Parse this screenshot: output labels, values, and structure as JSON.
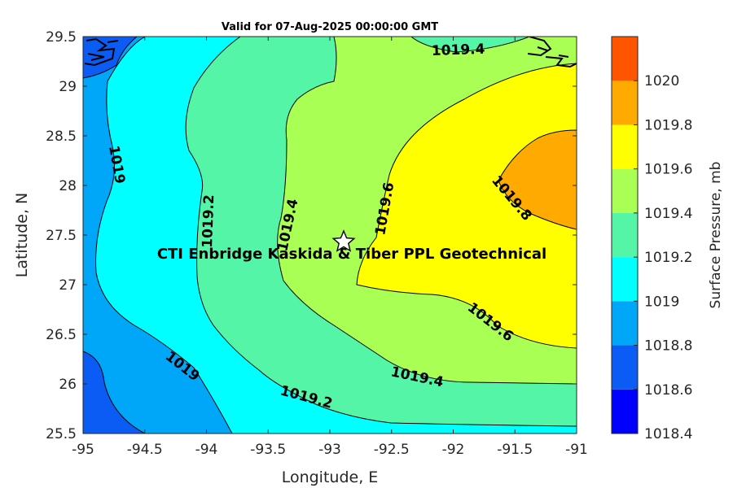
{
  "title": "Valid for 07-Aug-2025 00:00:00 GMT",
  "xlabel": "Longitude, E",
  "ylabel": "Latitude, N",
  "site_label": "CTI Enbridge  Kaskida & Tiber PPL Geotechnical",
  "colorbar": {
    "label": "Surface Pressure, mb",
    "ticks": [
      "1018.4",
      "1018.6",
      "1018.8",
      "1019",
      "1019.2",
      "1019.4",
      "1019.6",
      "1019.8",
      "1020"
    ],
    "levels": [
      {
        "from": 1018.4,
        "to": 1018.6,
        "color": "#0000ff"
      },
      {
        "from": 1018.6,
        "to": 1018.8,
        "color": "#0b5cf4"
      },
      {
        "from": 1018.8,
        "to": 1019.0,
        "color": "#00a6f7"
      },
      {
        "from": 1019.0,
        "to": 1019.2,
        "color": "#00ffff"
      },
      {
        "from": 1019.2,
        "to": 1019.4,
        "color": "#55f5a7"
      },
      {
        "from": 1019.4,
        "to": 1019.6,
        "color": "#aaff55"
      },
      {
        "from": 1019.6,
        "to": 1019.8,
        "color": "#ffff00"
      },
      {
        "from": 1019.8,
        "to": 1020.0,
        "color": "#ffaa00"
      },
      {
        "from": 1020.0,
        "to": 1020.2,
        "color": "#ff5500"
      }
    ]
  },
  "chart_data": {
    "type": "heatmap",
    "subtype": "filled contour map",
    "title": "Valid for 07-Aug-2025 00:00:00 GMT",
    "xlabel": "Longitude, E",
    "ylabel": "Latitude, N",
    "xlim": [
      -95,
      -91
    ],
    "ylim": [
      25.5,
      29.5
    ],
    "x_ticks": [
      "-95",
      "-94.5",
      "-94",
      "-93.5",
      "-93",
      "-92.5",
      "-92",
      "-91.5",
      "-91"
    ],
    "y_ticks": [
      "25.5",
      "26",
      "26.5",
      "27",
      "27.5",
      "28",
      "28.5",
      "29",
      "29.5"
    ],
    "variable": "Surface Pressure, mb",
    "contour_labels": [
      {
        "text": "1019",
        "lon": -94.75,
        "lat": 28.15
      },
      {
        "text": "1019.2",
        "lon": -94.03,
        "lat": 27.8
      },
      {
        "text": "1019.4",
        "lon": -93.32,
        "lat": 27.62
      },
      {
        "text": "1019.6",
        "lon": -92.58,
        "lat": 27.8
      },
      {
        "text": "1019.8",
        "lon": -91.65,
        "lat": 27.9
      },
      {
        "text": "1019.4",
        "lon": -91.95,
        "lat": 29.37
      },
      {
        "text": "1019",
        "lon": -94.58,
        "lat": 26.14
      },
      {
        "text": "1019.2",
        "lon": -93.25,
        "lat": 25.83
      },
      {
        "text": "1019.4",
        "lon": -92.1,
        "lat": 26.03
      },
      {
        "text": "1019.6",
        "lon": -91.85,
        "lat": 26.71
      }
    ],
    "site_marker": {
      "lon": -92.87,
      "lat": 27.43,
      "symbol": "star"
    },
    "colorbar_range": [
      1018.4,
      1020.2
    ]
  }
}
